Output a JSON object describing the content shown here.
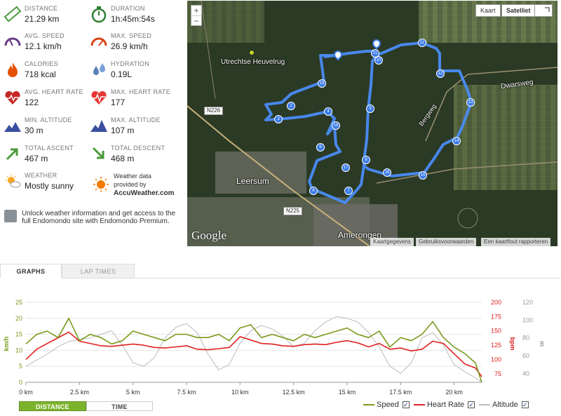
{
  "stats": {
    "distance": {
      "label": "DISTANCE",
      "value": "21.29 km"
    },
    "duration": {
      "label": "DURATION",
      "value": "1h:45m:54s"
    },
    "avg_speed": {
      "label": "AVG. SPEED",
      "value": "12.1 km/h"
    },
    "max_speed": {
      "label": "MAX. SPEED",
      "value": "26.9 km/h"
    },
    "calories": {
      "label": "CALORIES",
      "value": "718 kcal"
    },
    "hydration": {
      "label": "HYDRATION",
      "value": "0.19L"
    },
    "avg_hr": {
      "label": "AVG. HEART RATE",
      "value": "122"
    },
    "max_hr": {
      "label": "MAX. HEART RATE",
      "value": "177"
    },
    "min_alt": {
      "label": "MIN. ALTITUDE",
      "value": "30 m"
    },
    "max_alt": {
      "label": "MAX. ALTITUDE",
      "value": "107 m"
    },
    "total_ascent": {
      "label": "TOTAL ASCENT",
      "value": "467 m"
    },
    "total_descent": {
      "label": "TOTAL DESCENT",
      "value": "468 m"
    },
    "weather": {
      "label": "WEATHER",
      "value": "Mostly sunny"
    },
    "weather_provider": {
      "line1": "Weather data",
      "line2": "provided by",
      "brand": "AccuWeather.com"
    }
  },
  "premium_text": "Unlock weather information and get access to the full Endomondo site with Endomondo Premium.",
  "map": {
    "zoom_in": "+",
    "zoom_out": "−",
    "type_map": "Kaart",
    "type_satellite": "Satelliet",
    "labels": {
      "heuvelrug": "Utrechtse Heuvelrug",
      "leersum": "Leersum",
      "amerongen": "Amerongen",
      "dwarsweg": "Dwarsweg",
      "bergweg": "Bergweg",
      "n226": "N226",
      "n225": "N225"
    },
    "google": "Google",
    "attrib": {
      "data": "Kaartgegevens",
      "terms": "Gebruiksvoorwaarden",
      "report": "Een kaartfout rapporteren"
    },
    "markers": [
      "2",
      "3",
      "4",
      "5",
      "6",
      "7",
      "8",
      "9",
      "10",
      "11",
      "12",
      "13",
      "14",
      "15",
      "16",
      "17",
      "18",
      "19",
      "21"
    ]
  },
  "tabs": {
    "graphs": "GRAPHS",
    "lap_times": "LAP TIMES"
  },
  "chart_data": {
    "type": "line",
    "x_unit": "km",
    "xlim": [
      0,
      21.29
    ],
    "x_ticks": [
      "0 km",
      "2.5 km",
      "5 km",
      "7.5 km",
      "10 km",
      "12.5 km",
      "15 km",
      "17.5 km",
      "20 km"
    ],
    "y_left": {
      "label": "km/h",
      "ticks": [
        "0",
        "5",
        "10",
        "15",
        "20",
        "25"
      ],
      "ylim": [
        0,
        25
      ],
      "color": "#7a9a1a"
    },
    "y_right_hr": {
      "label": "bpm",
      "ticks": [
        "75",
        "100",
        "125",
        "150",
        "175",
        "200"
      ],
      "ylim": [
        60,
        200
      ],
      "color": "#e02020"
    },
    "y_right_alt": {
      "label": "m",
      "ticks": [
        "40",
        "60",
        "80",
        "100",
        "120"
      ],
      "ylim": [
        30,
        120
      ],
      "color": "#999999"
    },
    "series": [
      {
        "name": "Speed",
        "color": "#7a9a1a",
        "x": [
          0,
          0.5,
          1,
          1.5,
          2,
          2.5,
          3,
          3.5,
          4,
          4.5,
          5,
          5.5,
          6,
          6.5,
          7,
          7.5,
          8,
          8.5,
          9,
          9.5,
          10,
          10.5,
          11,
          11.5,
          12,
          12.5,
          13,
          13.5,
          14,
          14.5,
          15,
          15.5,
          16,
          16.5,
          17,
          17.5,
          18,
          18.5,
          19,
          19.5,
          20,
          20.5,
          21,
          21.29
        ],
        "values": [
          12,
          15,
          16,
          14,
          20,
          13,
          15,
          14,
          12,
          13,
          16,
          15,
          14,
          13,
          15,
          15,
          14,
          14,
          15,
          13,
          17,
          18,
          14,
          15,
          14,
          13,
          15,
          14,
          15,
          16,
          17,
          15,
          14,
          16,
          11,
          14,
          13,
          15,
          19,
          14,
          11,
          9,
          6,
          0
        ]
      },
      {
        "name": "Heart Rate",
        "color": "#e02020",
        "x": [
          0,
          0.5,
          1,
          1.5,
          2,
          2.5,
          3,
          3.5,
          4,
          4.5,
          5,
          5.5,
          6,
          6.5,
          7,
          7.5,
          8,
          8.5,
          9,
          9.5,
          10,
          10.5,
          11,
          11.5,
          12,
          12.5,
          13,
          13.5,
          14,
          14.5,
          15,
          15.5,
          16,
          16.5,
          17,
          17.5,
          18,
          18.5,
          19,
          19.5,
          20,
          20.5,
          21,
          21.29
        ],
        "values": [
          100,
          118,
          128,
          138,
          148,
          132,
          128,
          124,
          123,
          125,
          127,
          125,
          121,
          120,
          122,
          124,
          118,
          117,
          119,
          121,
          140,
          134,
          128,
          127,
          124,
          123,
          126,
          127,
          126,
          130,
          133,
          129,
          122,
          128,
          118,
          120,
          115,
          118,
          132,
          128,
          110,
          92,
          85,
          70
        ]
      },
      {
        "name": "Altitude",
        "color": "#bbbbbb",
        "x": [
          0,
          0.5,
          1,
          1.5,
          2,
          2.5,
          3,
          3.5,
          4,
          4.5,
          5,
          5.5,
          6,
          6.5,
          7,
          7.5,
          8,
          8.5,
          9,
          9.5,
          10,
          10.5,
          11,
          11.5,
          12,
          12.5,
          13,
          13.5,
          14,
          14.5,
          15,
          15.5,
          16,
          16.5,
          17,
          17.5,
          18,
          18.5,
          19,
          19.5,
          20,
          20.5,
          21,
          21.29
        ],
        "values": [
          48,
          55,
          62,
          70,
          76,
          78,
          80,
          84,
          88,
          72,
          52,
          48,
          58,
          80,
          92,
          96,
          86,
          62,
          44,
          50,
          74,
          88,
          94,
          90,
          82,
          70,
          74,
          88,
          98,
          104,
          102,
          98,
          86,
          70,
          48,
          40,
          52,
          80,
          86,
          72,
          50,
          42,
          35,
          30
        ]
      }
    ],
    "grid": true,
    "legend_position": "bottom-right"
  },
  "controls": {
    "distance": "DISTANCE",
    "time": "TIME",
    "check": "✓"
  },
  "colors": {
    "accent_green": "#7cb32d",
    "route_blue": "#4a8cf7"
  }
}
